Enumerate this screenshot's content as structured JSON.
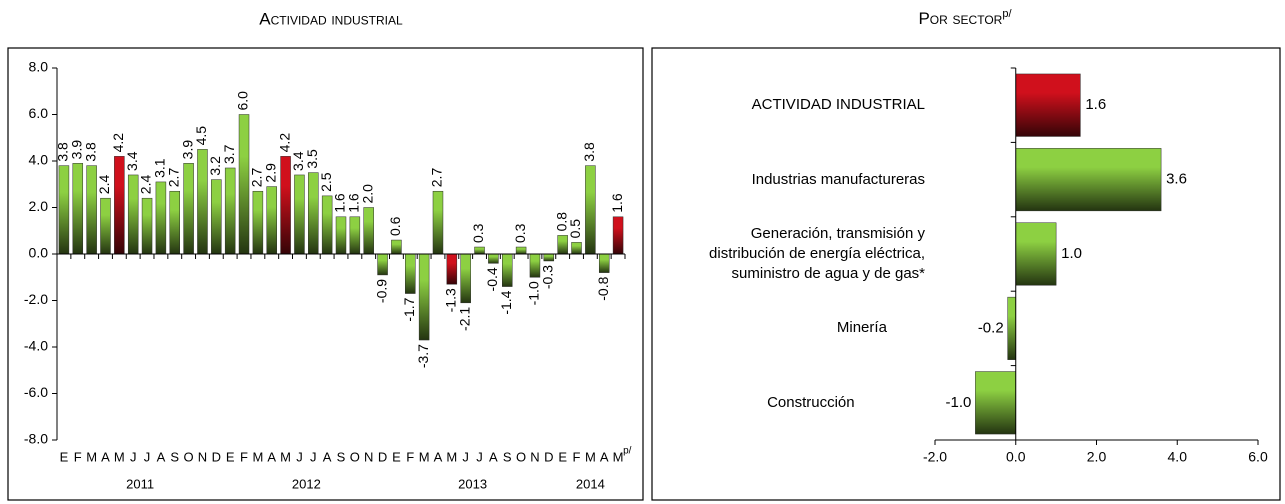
{
  "chart_data": [
    {
      "type": "bar",
      "title": "Actividad industrial",
      "categories": [
        "E",
        "F",
        "M",
        "A",
        "M",
        "J",
        "J",
        "A",
        "S",
        "O",
        "N",
        "D",
        "E",
        "F",
        "M",
        "A",
        "M",
        "J",
        "J",
        "A",
        "S",
        "O",
        "N",
        "D",
        "E",
        "F",
        "M",
        "A",
        "M",
        "J",
        "J",
        "A",
        "S",
        "O",
        "N",
        "D",
        "E",
        "F",
        "M",
        "A",
        "M"
      ],
      "last_category_note": "p/",
      "years": [
        "2011",
        "2012",
        "2013",
        "2014"
      ],
      "values": [
        3.8,
        3.9,
        3.8,
        2.4,
        4.2,
        3.4,
        2.4,
        3.1,
        2.7,
        3.9,
        4.5,
        3.2,
        3.7,
        6.0,
        2.7,
        2.9,
        4.2,
        3.4,
        3.5,
        2.5,
        1.6,
        1.6,
        2.0,
        -0.9,
        0.6,
        -1.7,
        -3.7,
        2.7,
        -1.3,
        -2.1,
        0.3,
        -0.4,
        -1.4,
        0.3,
        -1.0,
        -0.3,
        0.8,
        0.5,
        3.8,
        -0.8,
        1.6
      ],
      "value_labels": [
        "3.8",
        "3.9",
        "3.8",
        "2.4",
        "4.2",
        "3.4",
        "2.4",
        "3.1",
        "2.7",
        "3.9",
        "4.5",
        "3.2",
        "3.7",
        "6.0",
        "2.7",
        "2.9",
        "4.2",
        "3.4",
        "3.5",
        "2.5",
        "1.6",
        "1.6",
        "2.0",
        "-0.9",
        "0.6",
        "-1.7",
        "-3.7",
        "2.7",
        "-1.3",
        "-2.1",
        "0.3",
        "-0.4",
        "-1.4",
        "0.3",
        "-1.0",
        "-0.3",
        "0.8",
        "0.5",
        "3.8",
        "-0.8",
        "1.6"
      ],
      "colors": [
        "#8dd042",
        "#8dd042",
        "#8dd042",
        "#8dd042",
        "#d0101c",
        "#8dd042",
        "#8dd042",
        "#8dd042",
        "#8dd042",
        "#8dd042",
        "#8dd042",
        "#8dd042",
        "#8dd042",
        "#8dd042",
        "#8dd042",
        "#8dd042",
        "#d0101c",
        "#8dd042",
        "#8dd042",
        "#8dd042",
        "#8dd042",
        "#8dd042",
        "#8dd042",
        "#8dd042",
        "#8dd042",
        "#8dd042",
        "#8dd042",
        "#8dd042",
        "#d0101c",
        "#8dd042",
        "#8dd042",
        "#8dd042",
        "#8dd042",
        "#8dd042",
        "#8dd042",
        "#8dd042",
        "#8dd042",
        "#8dd042",
        "#8dd042",
        "#8dd042",
        "#d0101c"
      ],
      "ylim": [
        -8,
        8
      ],
      "yticks": [
        {
          "value": -8,
          "label": "-8.0"
        },
        {
          "value": -6,
          "label": "-6.0"
        },
        {
          "value": -4,
          "label": "-4.0"
        },
        {
          "value": -2,
          "label": "-2.0"
        },
        {
          "value": 0,
          "label": "0.0"
        },
        {
          "value": 2,
          "label": "2.0"
        },
        {
          "value": 4,
          "label": "4.0"
        },
        {
          "value": 6,
          "label": "6.0"
        },
        {
          "value": 8,
          "label": "8.0"
        }
      ]
    },
    {
      "type": "hbar",
      "title": "Por sector",
      "title_note": "p/",
      "categories": [
        "ACTIVIDAD INDUSTRIAL",
        "Industrias manufactureras",
        "Generación, transmisión y\ndistribución de energía eléctrica,\nsuministro de agua y de gas*",
        "Minería",
        "Construcción"
      ],
      "values": [
        1.6,
        3.6,
        1.0,
        -0.2,
        -1.0
      ],
      "value_labels": [
        "1.6",
        "3.6",
        "1.0",
        "-0.2",
        "-1.0"
      ],
      "colors": [
        "#d0101c",
        "#8dd042",
        "#8dd042",
        "#8dd042",
        "#8dd042"
      ],
      "xlim": [
        -2,
        6
      ],
      "xticks": [
        {
          "value": -2,
          "label": "-2.0"
        },
        {
          "value": 0,
          "label": "0.0"
        },
        {
          "value": 2,
          "label": "2.0"
        },
        {
          "value": 4,
          "label": "4.0"
        },
        {
          "value": 6,
          "label": "6.0"
        }
      ]
    }
  ]
}
